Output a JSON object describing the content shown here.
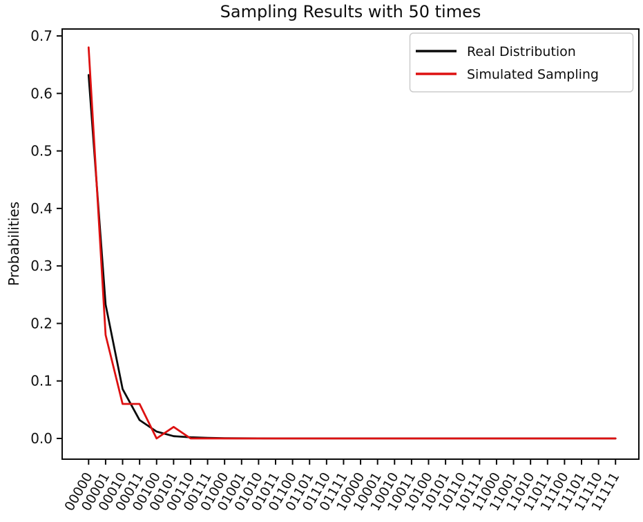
{
  "chart_data": {
    "type": "line",
    "title": "Sampling Results with 50 times",
    "xlabel": "",
    "ylabel": "Probabilities",
    "grid": false,
    "legend_position": "upper right",
    "ylim": [
      -0.036,
      0.712
    ],
    "yticks": [
      "0.0",
      "0.1",
      "0.2",
      "0.3",
      "0.4",
      "0.5",
      "0.6",
      "0.7"
    ],
    "categories": [
      "00000",
      "00001",
      "00010",
      "00011",
      "00100",
      "00101",
      "00110",
      "00111",
      "01000",
      "01001",
      "01010",
      "01011",
      "01100",
      "01101",
      "01110",
      "01111",
      "10000",
      "10001",
      "10010",
      "10011",
      "10100",
      "10101",
      "10110",
      "10111",
      "11000",
      "11001",
      "11010",
      "11011",
      "11100",
      "11101",
      "11110",
      "11111"
    ],
    "series": [
      {
        "name": "Real Distribution",
        "color": "#0a0a0a",
        "values": [
          0.632,
          0.233,
          0.086,
          0.032,
          0.012,
          0.004,
          0.002,
          0.001,
          0.0004,
          0.0002,
          0.0001,
          0,
          0,
          0,
          0,
          0,
          0,
          0,
          0,
          0,
          0,
          0,
          0,
          0,
          0,
          0,
          0,
          0,
          0,
          0,
          0,
          0
        ]
      },
      {
        "name": "Simulated Sampling",
        "color": "#dd1111",
        "values": [
          0.68,
          0.18,
          0.06,
          0.06,
          0,
          0.02,
          0,
          0,
          0,
          0,
          0,
          0,
          0,
          0,
          0,
          0,
          0,
          0,
          0,
          0,
          0,
          0,
          0,
          0,
          0,
          0,
          0,
          0,
          0,
          0,
          0,
          0
        ]
      }
    ]
  }
}
